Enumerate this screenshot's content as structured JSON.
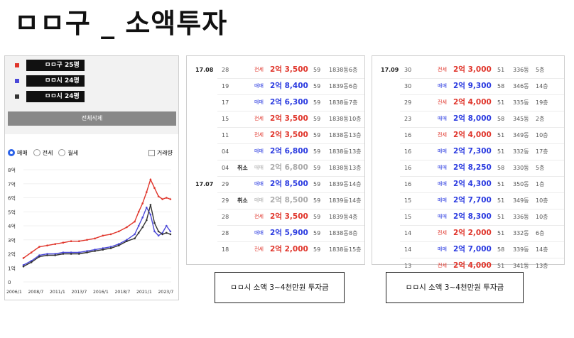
{
  "title": "ㅁㅁ구 _ 소액투자",
  "legend": [
    {
      "label": "ㅁㅁ구 25평",
      "color": "#e0352b"
    },
    {
      "label": "ㅁㅁ시 24평",
      "color": "#4a48d8"
    },
    {
      "label": "ㅁㅁ시 24평",
      "color": "#333333"
    }
  ],
  "clear_button": "전체삭제",
  "filters": {
    "radios": [
      {
        "label": "매매",
        "selected": true
      },
      {
        "label": "전세",
        "selected": false
      },
      {
        "label": "월세",
        "selected": false
      }
    ],
    "checkbox_label": "거래량"
  },
  "chart_data": {
    "type": "line",
    "ylabels": [
      "8억",
      "7억",
      "6억",
      "5억",
      "4억",
      "3억",
      "2억",
      "1억",
      "0"
    ],
    "ylim": [
      0,
      8
    ],
    "xlabels": [
      "2006/1",
      "2008/7",
      "2011/1",
      "2013/7",
      "2016/1",
      "2018/7",
      "2021/1",
      "2023/7"
    ],
    "x": [
      2006.0,
      2007.0,
      2008.0,
      2009.0,
      2010.0,
      2011.0,
      2012.0,
      2013.0,
      2014.0,
      2015.0,
      2016.0,
      2017.0,
      2018.0,
      2019.0,
      2020.0,
      2020.5,
      2021.0,
      2021.5,
      2022.0,
      2022.5,
      2023.0,
      2023.5,
      2024.0,
      2024.5
    ],
    "series": [
      {
        "color": "#e0352b",
        "values": [
          1.7,
          2.1,
          2.5,
          2.6,
          2.7,
          2.8,
          2.9,
          2.9,
          3.0,
          3.1,
          3.3,
          3.4,
          3.6,
          3.9,
          4.3,
          5.0,
          5.6,
          6.4,
          7.3,
          6.7,
          6.1,
          5.9,
          6.0,
          5.9
        ]
      },
      {
        "color": "#4a48d8",
        "values": [
          1.2,
          1.5,
          1.9,
          2.0,
          2.0,
          2.1,
          2.1,
          2.1,
          2.2,
          2.3,
          2.4,
          2.5,
          2.7,
          3.0,
          3.4,
          4.0,
          4.6,
          5.3,
          4.8,
          3.6,
          3.3,
          3.5,
          4.0,
          3.6
        ]
      },
      {
        "color": "#333333",
        "values": [
          1.1,
          1.4,
          1.8,
          1.9,
          1.9,
          2.0,
          2.0,
          2.0,
          2.1,
          2.2,
          2.3,
          2.4,
          2.6,
          2.9,
          3.1,
          3.5,
          3.9,
          4.4,
          5.5,
          4.2,
          3.6,
          3.4,
          3.5,
          3.4
        ]
      }
    ]
  },
  "table1": {
    "rows": [
      {
        "month": "17.08",
        "day": "28",
        "cancel": "",
        "type": "전세",
        "price": "2억 3,500",
        "area": "59",
        "unit": "1838동",
        "floor": "6층",
        "tone": "red"
      },
      {
        "month": "",
        "day": "19",
        "cancel": "",
        "type": "매매",
        "price": "2억 8,400",
        "area": "59",
        "unit": "1839동",
        "floor": "6층",
        "tone": "blue"
      },
      {
        "month": "",
        "day": "17",
        "cancel": "",
        "type": "매매",
        "price": "2억 6,300",
        "area": "59",
        "unit": "1838동",
        "floor": "7층",
        "tone": "blue"
      },
      {
        "month": "",
        "day": "15",
        "cancel": "",
        "type": "전세",
        "price": "2억 3,500",
        "area": "59",
        "unit": "1838동",
        "floor": "10층",
        "tone": "red"
      },
      {
        "month": "",
        "day": "11",
        "cancel": "",
        "type": "전세",
        "price": "2억 3,500",
        "area": "59",
        "unit": "1838동",
        "floor": "13층",
        "tone": "red"
      },
      {
        "month": "",
        "day": "04",
        "cancel": "",
        "type": "매매",
        "price": "2억 6,800",
        "area": "59",
        "unit": "1838동",
        "floor": "13층",
        "tone": "blue"
      },
      {
        "month": "",
        "day": "04",
        "cancel": "취소",
        "type": "매매",
        "price": "2억 6,800",
        "area": "59",
        "unit": "1838동",
        "floor": "13층",
        "tone": "gray"
      },
      {
        "month": "17.07",
        "day": "29",
        "cancel": "",
        "type": "매매",
        "price": "2억 8,500",
        "area": "59",
        "unit": "1839동",
        "floor": "14층",
        "tone": "blue"
      },
      {
        "month": "",
        "day": "29",
        "cancel": "취소",
        "type": "매매",
        "price": "2억 8,500",
        "area": "59",
        "unit": "1839동",
        "floor": "14층",
        "tone": "gray"
      },
      {
        "month": "",
        "day": "28",
        "cancel": "",
        "type": "전세",
        "price": "2억 3,500",
        "area": "59",
        "unit": "1839동",
        "floor": "4층",
        "tone": "red"
      },
      {
        "month": "",
        "day": "28",
        "cancel": "",
        "type": "매매",
        "price": "2억 5,900",
        "area": "59",
        "unit": "1838동",
        "floor": "8층",
        "tone": "blue"
      },
      {
        "month": "",
        "day": "18",
        "cancel": "",
        "type": "전세",
        "price": "2억 2,000",
        "area": "59",
        "unit": "1838동",
        "floor": "15층",
        "tone": "red"
      }
    ]
  },
  "table2": {
    "rows": [
      {
        "month": "17.09",
        "day": "30",
        "cancel": "",
        "type": "전세",
        "price": "2억 3,000",
        "area": "51",
        "unit": "336동",
        "floor": "5층",
        "tone": "red"
      },
      {
        "month": "",
        "day": "30",
        "cancel": "",
        "type": "매매",
        "price": "2억 9,300",
        "area": "58",
        "unit": "346동",
        "floor": "14층",
        "tone": "blue"
      },
      {
        "month": "",
        "day": "29",
        "cancel": "",
        "type": "전세",
        "price": "2억 4,000",
        "area": "51",
        "unit": "335동",
        "floor": "19층",
        "tone": "red"
      },
      {
        "month": "",
        "day": "23",
        "cancel": "",
        "type": "매매",
        "price": "2억 8,000",
        "area": "58",
        "unit": "345동",
        "floor": "2층",
        "tone": "blue"
      },
      {
        "month": "",
        "day": "16",
        "cancel": "",
        "type": "전세",
        "price": "2억 4,000",
        "area": "51",
        "unit": "349동",
        "floor": "10층",
        "tone": "red"
      },
      {
        "month": "",
        "day": "16",
        "cancel": "",
        "type": "매매",
        "price": "2억 7,300",
        "area": "51",
        "unit": "332동",
        "floor": "17층",
        "tone": "blue"
      },
      {
        "month": "",
        "day": "16",
        "cancel": "",
        "type": "매매",
        "price": "2억 8,250",
        "area": "58",
        "unit": "330동",
        "floor": "5층",
        "tone": "blue"
      },
      {
        "month": "",
        "day": "16",
        "cancel": "",
        "type": "매매",
        "price": "2억 4,300",
        "area": "51",
        "unit": "350동",
        "floor": "1층",
        "tone": "blue"
      },
      {
        "month": "",
        "day": "15",
        "cancel": "",
        "type": "매매",
        "price": "2억 7,700",
        "area": "51",
        "unit": "349동",
        "floor": "10층",
        "tone": "blue"
      },
      {
        "month": "",
        "day": "15",
        "cancel": "",
        "type": "매매",
        "price": "2억 8,300",
        "area": "51",
        "unit": "336동",
        "floor": "10층",
        "tone": "blue"
      },
      {
        "month": "",
        "day": "14",
        "cancel": "",
        "type": "전세",
        "price": "2억 2,000",
        "area": "51",
        "unit": "332동",
        "floor": "6층",
        "tone": "red"
      },
      {
        "month": "",
        "day": "14",
        "cancel": "",
        "type": "매매",
        "price": "2억 7,000",
        "area": "58",
        "unit": "339동",
        "floor": "14층",
        "tone": "blue"
      },
      {
        "month": "",
        "day": "13",
        "cancel": "",
        "type": "전세",
        "price": "2억 4,000",
        "area": "51",
        "unit": "341동",
        "floor": "13층",
        "tone": "red"
      }
    ]
  },
  "caption1": "ㅁㅁ시 소액 3~4천만원 투자금",
  "caption2": "ㅁㅁ시 소액 3~4천만원 투자금"
}
